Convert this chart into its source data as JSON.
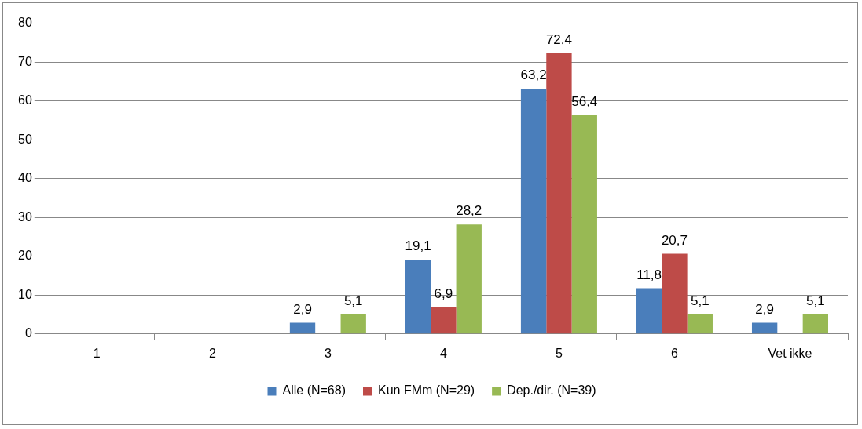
{
  "chart_data": {
    "type": "bar",
    "categories": [
      "1",
      "2",
      "3",
      "4",
      "5",
      "6",
      "Vet ikke"
    ],
    "series": [
      {
        "name": "Alle (N=68)",
        "color": "#4a7ebb",
        "values": [
          null,
          null,
          2.9,
          19.1,
          63.2,
          11.8,
          2.9
        ],
        "value_labels": [
          null,
          null,
          "2,9",
          "19,1",
          "63,2",
          "11,8",
          "2,9"
        ]
      },
      {
        "name": "Kun FMm (N=29)",
        "color": "#be4b48",
        "values": [
          null,
          null,
          null,
          6.9,
          72.4,
          20.7,
          null
        ],
        "value_labels": [
          null,
          null,
          null,
          "6,9",
          "72,4",
          "20,7",
          null
        ]
      },
      {
        "name": "Dep./dir. (N=39)",
        "color": "#98b954",
        "values": [
          null,
          null,
          5.1,
          28.2,
          56.4,
          5.1,
          5.1
        ],
        "value_labels": [
          null,
          null,
          "5,1",
          "28,2",
          "56,4",
          "5,1",
          "5,1"
        ]
      }
    ],
    "ylim": [
      0,
      80
    ],
    "yticks": [
      0,
      10,
      20,
      30,
      40,
      50,
      60,
      70,
      80
    ],
    "grid": "y",
    "legend": "bottom"
  }
}
